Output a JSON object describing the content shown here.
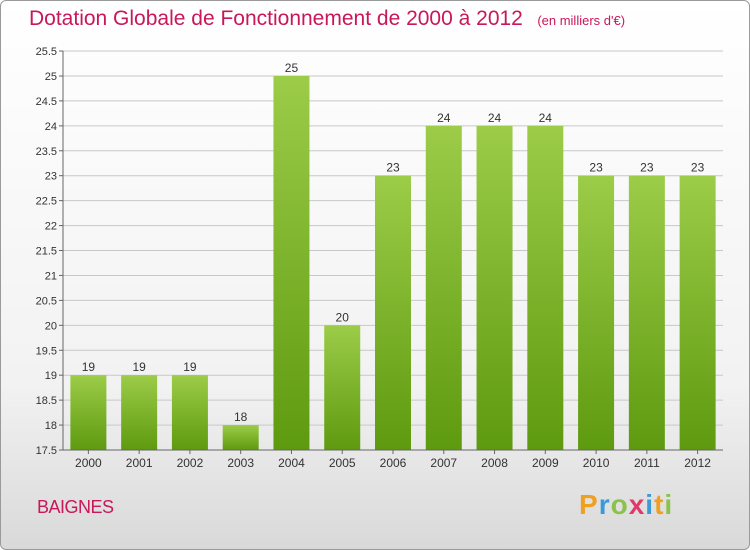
{
  "title": "Dotation Globale de Fonctionnement de 2000 à 2012",
  "unit_note": "(en milliers d'€)",
  "commune": "BAIGNES",
  "brand": {
    "letters": [
      "P",
      "r",
      "o",
      "x",
      "i",
      "t",
      "i"
    ],
    "colors": [
      "#f0a020",
      "#3a9ad9",
      "#8bc34a",
      "#e03a6a",
      "#3a9ad9",
      "#f0a020",
      "#8bc34a"
    ]
  },
  "colors": {
    "bar_top": "#9ccc48",
    "bar_bottom": "#5e9a10",
    "title": "#c8185a",
    "grid": "#c8c8c8",
    "text": "#333333"
  },
  "chart_data": {
    "type": "bar",
    "categories": [
      "2000",
      "2001",
      "2002",
      "2003",
      "2004",
      "2005",
      "2006",
      "2007",
      "2008",
      "2009",
      "2010",
      "2011",
      "2012"
    ],
    "values": [
      19,
      19,
      19,
      18,
      25,
      20,
      23,
      24,
      24,
      24,
      23,
      23,
      23
    ],
    "data_labels": [
      "19",
      "19",
      "19",
      "18",
      "25",
      "20",
      "23",
      "24",
      "24",
      "24",
      "23",
      "23",
      "23"
    ],
    "ylim": [
      17.5,
      25.5
    ],
    "yticks": [
      "17.5",
      "18",
      "18.5",
      "19",
      "19.5",
      "20",
      "20.5",
      "21",
      "21.5",
      "22",
      "22.5",
      "23",
      "23.5",
      "24",
      "24.5",
      "25",
      "25.5"
    ],
    "grid": true,
    "xlabel": "",
    "ylabel": ""
  }
}
